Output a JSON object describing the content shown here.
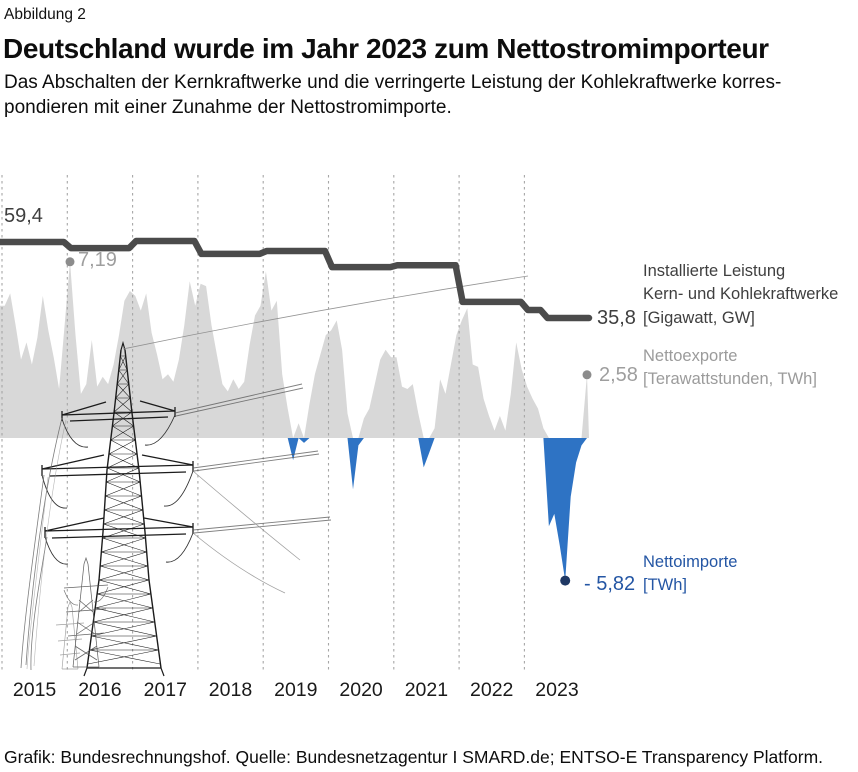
{
  "figure_label": "Abbildung 2",
  "title": "Deutschland wurde im Jahr 2023 zum Nettostromimporteur",
  "subtitle_line1": "Das Abschalten der Kernkraftwerke und die verringerte Leistung der Kohlekraftwerke korres-",
  "subtitle_line2": "pondieren mit einer Zunahme der Nettostromimporte.",
  "footer": "Grafik: Bundesrechnungshof. Quelle: Bundesnetzagentur I SMARD.de; ENTSO-E Transparency Platform.",
  "legend": {
    "capacity_line1": "Installierte Leistung",
    "capacity_line2": "Kern- und Kohlekraftwerke",
    "capacity_unit": "[Gigawatt, GW]",
    "exports_label": "Nettoexporte",
    "exports_unit": "[Terawattstunden, TWh]",
    "imports_label": "Nettoimporte",
    "imports_unit": "[TWh]"
  },
  "annotations": {
    "capacity_start": "59,4",
    "capacity_end": "35,8",
    "exports_peak": "7,19",
    "exports_end": "2,58",
    "imports_min": "- 5,82"
  },
  "colors": {
    "capacity_line": "#4b4b4b",
    "exports_area": "#d8d8d8",
    "imports_area": "#2e73c4",
    "gridline": "#a6a6a6",
    "gray_label": "#9e9e9e",
    "dark_label": "#3f3f3f",
    "blue_label": "#2456a4",
    "navy_dot": "#1f3864",
    "gray_dot": "#8c8c8c",
    "year_label": "#1a1a1a"
  },
  "chart_data": {
    "type": "area",
    "title": "Deutschland wurde im Jahr 2023 zum Nettostromimporteur",
    "x_years": [
      2015,
      2016,
      2017,
      2018,
      2019,
      2020,
      2021,
      2022,
      2023
    ],
    "grid": "vertical-dashed",
    "legend_position": "right",
    "ylim_gw": [
      35,
      60
    ],
    "ylim_twh": [
      -6.5,
      7.5
    ],
    "series": [
      {
        "name": "Installierte Leistung Kern- und Kohlekraftwerke",
        "unit": "GW",
        "type": "step-line",
        "segment_start_year": [
          2015,
          2016,
          2017,
          2018,
          2019,
          2020,
          2021,
          2022,
          2023,
          2023.3
        ],
        "values": [
          59.4,
          57.5,
          59.7,
          55.7,
          56.6,
          51.6,
          52.2,
          40.8,
          38.3,
          35.8
        ],
        "start_value": 59.4,
        "end_value": 35.8
      },
      {
        "name": "Nettoexporte / Nettoimporte",
        "unit": "TWh",
        "type": "monthly-area",
        "start_month": "2015-01",
        "end_month": "2023-12",
        "values": [
          5.4,
          5.9,
          4.6,
          3.2,
          3.9,
          3.0,
          4.1,
          5.8,
          4.4,
          3.3,
          2.0,
          4.6,
          7.19,
          4.2,
          1.8,
          2.2,
          4.0,
          2.1,
          2.5,
          2.2,
          3.0,
          4.2,
          5.6,
          6.0,
          5.8,
          5.2,
          5.9,
          4.3,
          3.4,
          2.4,
          2.6,
          2.3,
          3.2,
          4.6,
          6.4,
          5.4,
          6.3,
          6.2,
          4.6,
          3.4,
          2.2,
          1.9,
          2.4,
          2.0,
          2.3,
          3.8,
          5.0,
          5.4,
          6.8,
          5.2,
          5.6,
          2.6,
          1.2,
          -0.9,
          0.6,
          -0.2,
          1.4,
          2.6,
          3.4,
          4.2,
          4.4,
          4.8,
          3.6,
          1.0,
          -2.1,
          -0.3,
          0.8,
          1.2,
          2.2,
          3.2,
          3.6,
          3.3,
          3.3,
          2.1,
          2.0,
          2.2,
          1.0,
          -1.2,
          -0.6,
          0.4,
          2.4,
          1.8,
          3.0,
          4.2,
          4.8,
          5.3,
          3.0,
          2.9,
          1.6,
          0.9,
          0.3,
          0.9,
          0.3,
          1.8,
          3.9,
          2.8,
          2.1,
          1.6,
          1.2,
          0.4,
          -3.6,
          -3.1,
          -4.4,
          -5.82,
          -2.4,
          -1.0,
          -0.3,
          2.58
        ],
        "peak_point": {
          "month": "2016-01",
          "value": 7.19
        },
        "min_point": {
          "month": "2023-08",
          "value": -5.82
        },
        "end_point": {
          "month": "2023-12",
          "value": 2.58
        }
      }
    ]
  }
}
